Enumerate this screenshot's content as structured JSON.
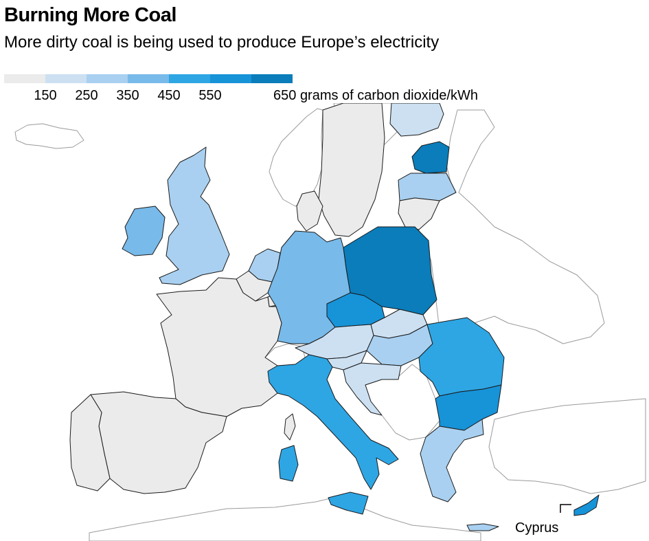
{
  "title": "Burning More Coal",
  "subtitle": "More dirty coal is being used to produce Europe’s electricity",
  "legend": {
    "colors": [
      "#ebebeb",
      "#cce0f2",
      "#a9d0f0",
      "#78baea",
      "#2ea6e4",
      "#1793d8",
      "#0a7dba"
    ],
    "ticks": [
      "150",
      "250",
      "350",
      "450",
      "550"
    ],
    "last_tick": "650",
    "unit": "grams of carbon dioxide/kWh"
  },
  "map_data": {
    "type": "choropleth",
    "unit": "g CO2/kWh",
    "bins": [
      {
        "range": "<150",
        "color": "#ebebeb"
      },
      {
        "range": "150–250",
        "color": "#cce0f2"
      },
      {
        "range": "250–350",
        "color": "#a9d0f0"
      },
      {
        "range": "350–450",
        "color": "#78baea"
      },
      {
        "range": "450–550",
        "color": "#2ea6e4"
      },
      {
        "range": "550–650",
        "color": "#1793d8"
      },
      {
        "range": ">650",
        "color": "#0a7dba"
      }
    ],
    "countries": {
      "estonia": "#0a7dba",
      "poland": "#0a7dba",
      "czechia": "#1793d8",
      "bulgaria": "#1793d8",
      "romania": "#2ea6e4",
      "italy": "#2ea6e4",
      "cyprus": "#1793d8",
      "ireland": "#78baea",
      "germany": "#78baea",
      "uk": "#a9d0f0",
      "netherlands": "#a9d0f0",
      "latvia": "#a9d0f0",
      "greece": "#a9d0f0",
      "hungary": "#a9d0f0",
      "austria": "#cce0f2",
      "slovakia": "#cce0f2",
      "slovenia": "#cce0f2",
      "croatia": "#cce0f2",
      "finland": "#cce0f2",
      "france": "#ebebeb",
      "spain": "#ebebeb",
      "portugal": "#ebebeb",
      "sweden": "#ebebeb",
      "belgium": "#ebebeb",
      "lithuania": "#ebebeb",
      "denmark": "#ebebeb",
      "luxembourg": "#ebebeb"
    },
    "callout_label": "Cyprus"
  }
}
